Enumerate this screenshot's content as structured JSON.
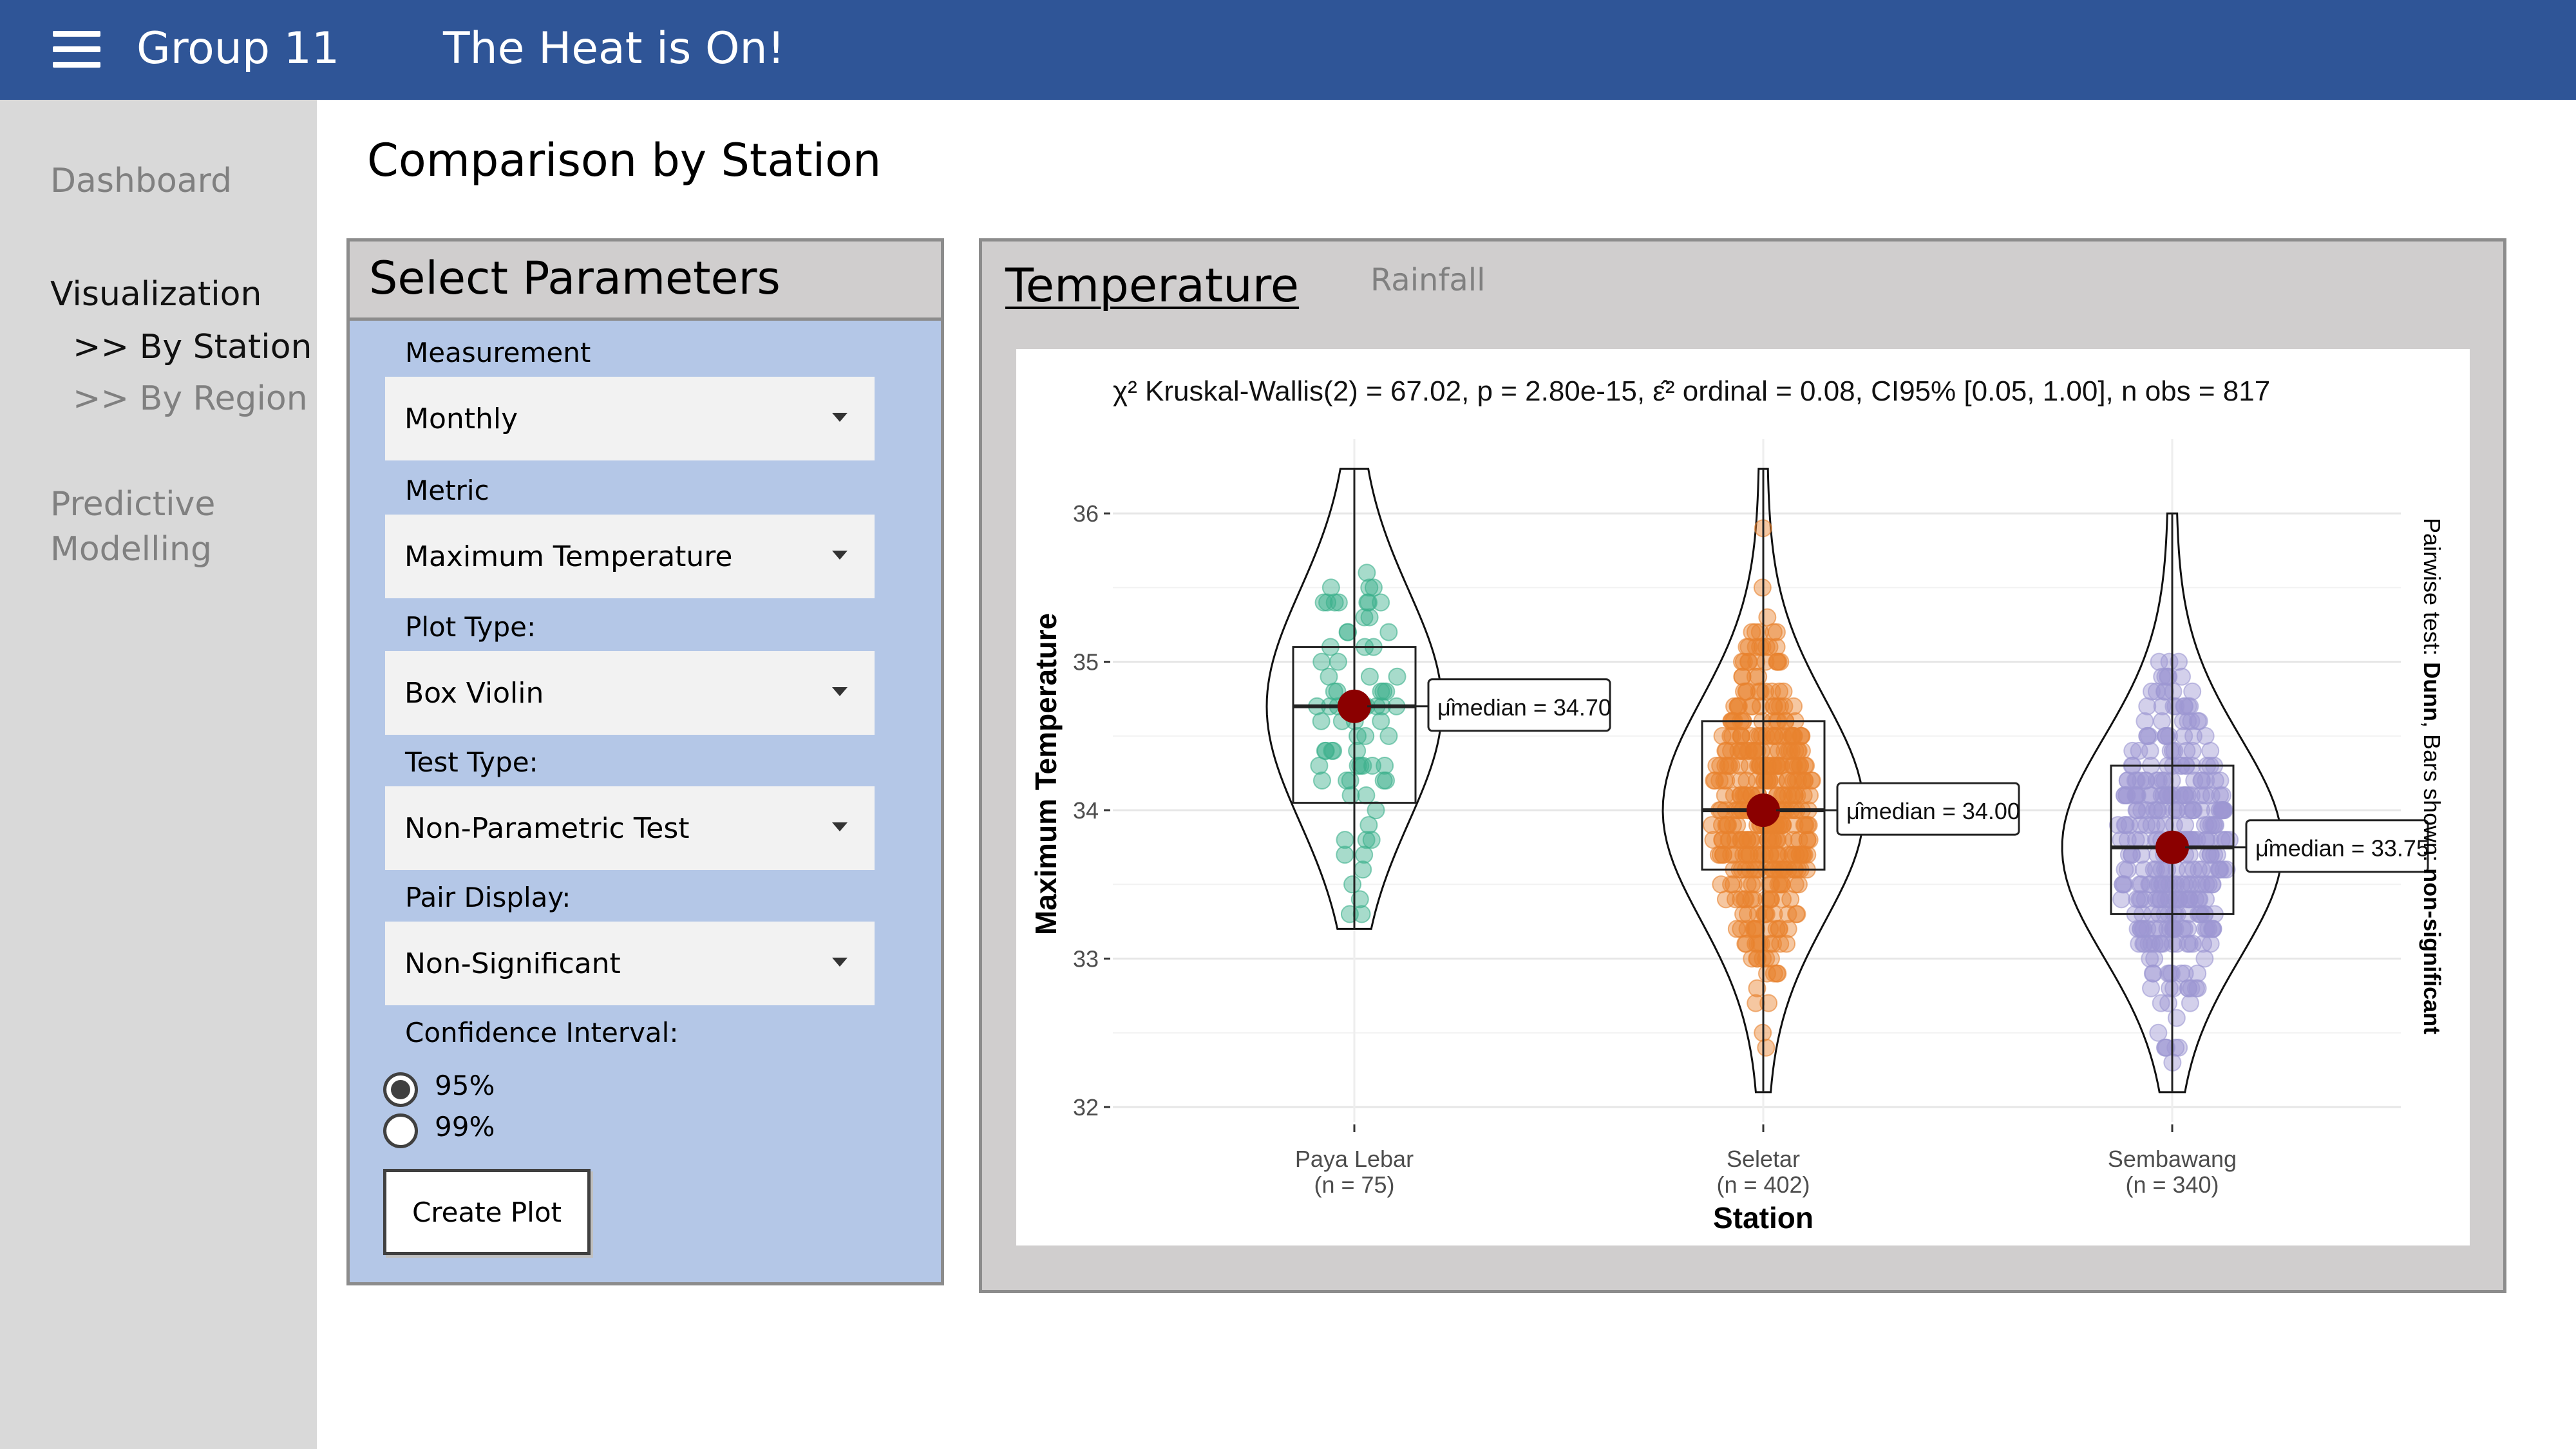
{
  "header": {
    "brand": "Group 11",
    "app_title": "The Heat is On!"
  },
  "sidebar": {
    "items": [
      {
        "label": "Dashboard"
      },
      {
        "label": "Visualization"
      },
      {
        "label": ">> By Station"
      },
      {
        "label": ">> By Region"
      },
      {
        "label": "Predictive"
      },
      {
        "label": "Modelling"
      }
    ]
  },
  "main": {
    "page_title": "Comparison by Station"
  },
  "params": {
    "title": "Select Parameters",
    "measurement": {
      "label": "Measurement",
      "value": "Monthly"
    },
    "metric": {
      "label": "Metric",
      "value": "Maximum Temperature"
    },
    "plot_type": {
      "label": "Plot Type:",
      "value": "Box Violin"
    },
    "test_type": {
      "label": "Test Type:",
      "value": "Non-Parametric Test"
    },
    "pair_display": {
      "label": "Pair Display:",
      "value": "Non-Significant"
    },
    "confidence": {
      "label": "Confidence Interval:",
      "options": [
        "95%",
        "99%"
      ],
      "selected": "95%"
    },
    "create_button": "Create Plot"
  },
  "tabs": {
    "active": "Temperature",
    "inactive": "Rainfall"
  },
  "chart_data": {
    "type": "box-violin",
    "subtitle": "χ² Kruskal-Wallis(2) = 67.02, p = 2.80e-15, ε̂² ordinal = 0.08, CI95% [0.05, 1.00], n obs = 817",
    "xlabel": "Station",
    "ylabel": "Maximum Temperature",
    "ylim": [
      31.9,
      36.5
    ],
    "yticks": [
      32,
      33,
      34,
      35,
      36
    ],
    "side_caption_prefix": "Pairwise test: ",
    "side_caption_bold": "Dunn",
    "side_caption_mid": ", Bars shown: ",
    "side_caption_bold2": "non-significant",
    "colors": {
      "Paya Lebar": "#3cb08c",
      "Seletar": "#e8822e",
      "Sembawang": "#9d97d2",
      "median": "#8b0000"
    },
    "categories": [
      {
        "name": "Paya Lebar",
        "n_label": "(n = 75)",
        "median": 34.7,
        "median_label": "μ̂median = 34.70",
        "q1": 34.05,
        "q3": 35.1,
        "min": 33.2,
        "max": 36.3
      },
      {
        "name": "Seletar",
        "n_label": "(n = 402)",
        "median": 34.0,
        "median_label": "μ̂median = 34.00",
        "q1": 33.6,
        "q3": 34.6,
        "min": 32.1,
        "max": 36.3
      },
      {
        "name": "Sembawang",
        "n_label": "(n = 340)",
        "median": 33.75,
        "median_label": "μ̂median = 33.75",
        "q1": 33.3,
        "q3": 34.3,
        "min": 32.1,
        "max": 36.0
      }
    ]
  }
}
